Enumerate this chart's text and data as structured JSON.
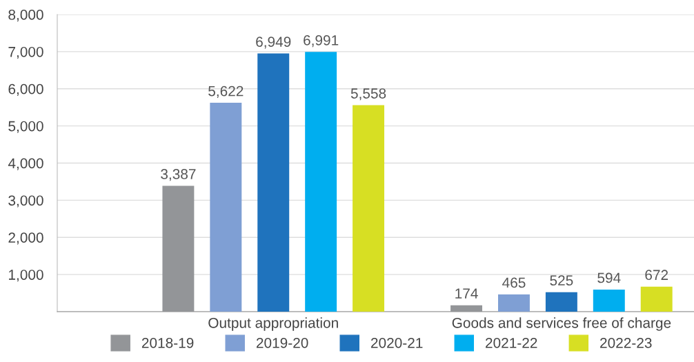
{
  "chart_data": {
    "type": "bar",
    "categories": [
      "Output appropriation",
      "Goods and services free of charge"
    ],
    "series": [
      {
        "name": "2018-19",
        "color": "#939598",
        "values": [
          3387,
          174
        ],
        "value_labels": [
          "3,387",
          "174"
        ]
      },
      {
        "name": "2019-20",
        "color": "#7f9fd4",
        "values": [
          5622,
          465
        ],
        "value_labels": [
          "5,622",
          "465"
        ]
      },
      {
        "name": "2020-21",
        "color": "#1f73bd",
        "values": [
          6949,
          525
        ],
        "value_labels": [
          "6,949",
          "525"
        ]
      },
      {
        "name": "2021-22",
        "color": "#00aeef",
        "values": [
          6991,
          594
        ],
        "value_labels": [
          "6,991",
          "594"
        ]
      },
      {
        "name": "2022-23",
        "color": "#d7df23",
        "values": [
          5558,
          672
        ],
        "value_labels": [
          "5,558",
          "672"
        ]
      }
    ],
    "ylim": [
      0,
      8000
    ],
    "yticks": [
      {
        "value": 0,
        "label": null
      },
      {
        "value": 1000,
        "label": "1,000"
      },
      {
        "value": 2000,
        "label": "2,000"
      },
      {
        "value": 3000,
        "label": "3,000"
      },
      {
        "value": 4000,
        "label": "4,000"
      },
      {
        "value": 5000,
        "label": "5,000"
      },
      {
        "value": 6000,
        "label": "6,000"
      },
      {
        "value": 7000,
        "label": "7,000"
      },
      {
        "value": 8000,
        "label": "8,000"
      }
    ],
    "grid": "y",
    "legend": "bottom"
  }
}
